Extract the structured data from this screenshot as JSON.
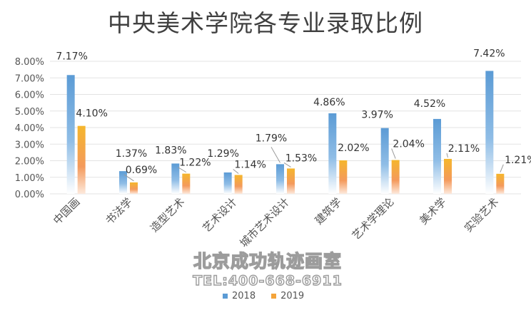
{
  "chart_data": {
    "type": "bar",
    "title": "中央美术学院各专业录取比例",
    "categories": [
      "中国画",
      "书法学",
      "造型艺术",
      "艺术设计",
      "城市艺术设计",
      "建筑学",
      "艺术学理论",
      "美术学",
      "实验艺术"
    ],
    "series": [
      {
        "name": "2018",
        "values": [
          7.17,
          1.37,
          1.83,
          1.29,
          1.79,
          4.86,
          3.97,
          4.52,
          7.42
        ],
        "labels": [
          "7.17%",
          "1.37%",
          "1.83%",
          "1.29%",
          "1.79%",
          "4.86%",
          "3.97%",
          "4.52%",
          "7.42%"
        ],
        "color": "#5b9bd5"
      },
      {
        "name": "2019",
        "values": [
          4.1,
          0.69,
          1.22,
          1.14,
          1.53,
          2.02,
          2.04,
          2.11,
          1.21
        ],
        "labels": [
          "4.10%",
          "0.69%",
          "1.22%",
          "1.14%",
          "1.53%",
          "2.02%",
          "2.04%",
          "2.11%",
          "1.21%"
        ],
        "color": "#f4a43a"
      }
    ],
    "ylim": [
      0,
      8
    ],
    "yticks": [
      "0.00%",
      "1.00%",
      "2.00%",
      "3.00%",
      "4.00%",
      "5.00%",
      "6.00%",
      "7.00%",
      "8.00%"
    ],
    "grid": true,
    "legend": "bottom",
    "xlabel": "",
    "ylabel": ""
  },
  "watermark": {
    "name": "北京成功轨迹画室",
    "tel": "TEL:400-668-6911"
  }
}
